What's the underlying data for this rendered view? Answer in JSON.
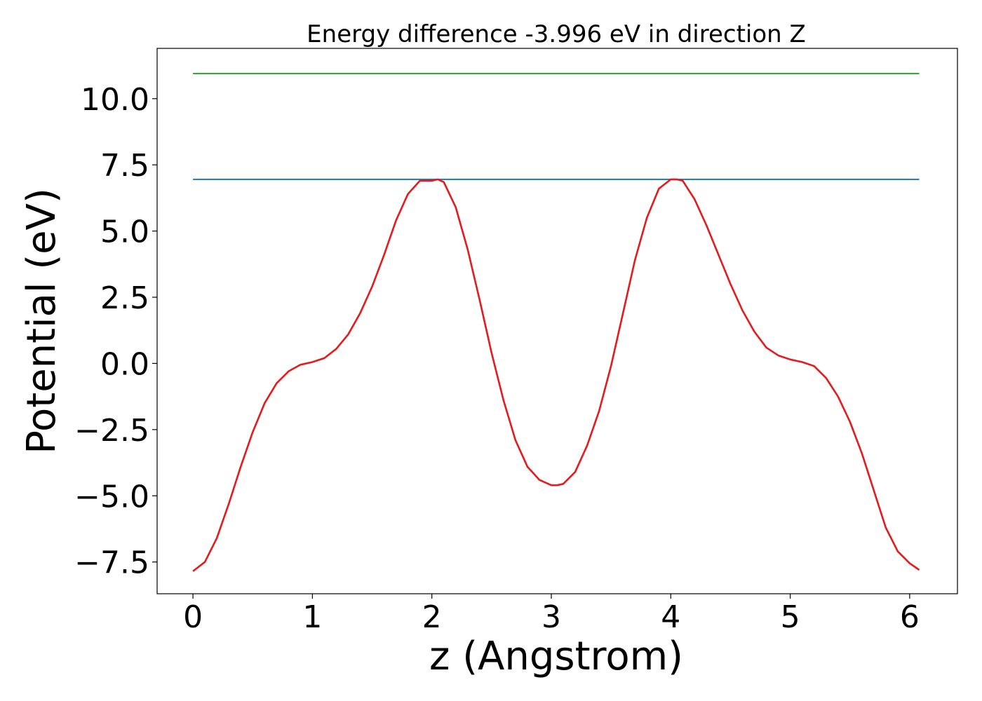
{
  "chart_data": {
    "type": "line",
    "title": "Energy difference -3.996 eV in direction Z",
    "xlabel": "z (Angstrom)",
    "ylabel": "Potential (eV)",
    "xlim": [
      -0.3,
      6.4
    ],
    "ylim": [
      -8.7,
      11.9
    ],
    "xticks": [
      0,
      1,
      2,
      3,
      4,
      5,
      6
    ],
    "yticks": [
      -7.5,
      -5.0,
      -2.5,
      0.0,
      2.5,
      5.0,
      7.5,
      10.0
    ],
    "xtick_labels": [
      "0",
      "1",
      "2",
      "3",
      "4",
      "5",
      "6"
    ],
    "ytick_labels": [
      "−7.5",
      "−5.0",
      "−2.5",
      "0.0",
      "2.5",
      "5.0",
      "7.5",
      "10.0"
    ],
    "grid": false,
    "series": [
      {
        "color": "#2ca02c",
        "style": "hline",
        "x": [
          0,
          6.08
        ],
        "y": [
          10.95,
          10.95
        ]
      },
      {
        "color": "#1f77b4",
        "style": "hline",
        "x": [
          0,
          6.08
        ],
        "y": [
          6.95,
          6.95
        ]
      },
      {
        "color": "#e41a1c",
        "style": "curve",
        "x": [
          0.0,
          0.1,
          0.2,
          0.3,
          0.4,
          0.5,
          0.6,
          0.7,
          0.8,
          0.9,
          1.0,
          1.1,
          1.2,
          1.3,
          1.4,
          1.5,
          1.6,
          1.7,
          1.8,
          1.9,
          2.0,
          2.05,
          2.1,
          2.2,
          2.3,
          2.4,
          2.5,
          2.6,
          2.7,
          2.8,
          2.9,
          3.0,
          3.05,
          3.1,
          3.2,
          3.3,
          3.4,
          3.5,
          3.6,
          3.7,
          3.8,
          3.9,
          4.0,
          4.05,
          4.1,
          4.2,
          4.3,
          4.4,
          4.5,
          4.6,
          4.7,
          4.8,
          4.9,
          5.0,
          5.1,
          5.2,
          5.3,
          5.4,
          5.5,
          5.6,
          5.7,
          5.8,
          5.9,
          6.0,
          6.08
        ],
        "y": [
          -7.85,
          -7.5,
          -6.6,
          -5.3,
          -3.9,
          -2.6,
          -1.5,
          -0.75,
          -0.3,
          -0.05,
          0.05,
          0.2,
          0.55,
          1.1,
          1.9,
          2.9,
          4.1,
          5.4,
          6.4,
          6.9,
          6.9,
          6.95,
          6.85,
          5.9,
          4.3,
          2.4,
          0.4,
          -1.4,
          -2.9,
          -3.9,
          -4.4,
          -4.6,
          -4.6,
          -4.55,
          -4.1,
          -3.1,
          -1.8,
          -0.1,
          1.9,
          3.9,
          5.5,
          6.6,
          6.95,
          6.95,
          6.9,
          6.2,
          5.2,
          4.1,
          3.0,
          2.0,
          1.2,
          0.6,
          0.3,
          0.15,
          0.05,
          -0.1,
          -0.55,
          -1.25,
          -2.2,
          -3.4,
          -4.8,
          -6.2,
          -7.1,
          -7.55,
          -7.8
        ]
      }
    ]
  }
}
